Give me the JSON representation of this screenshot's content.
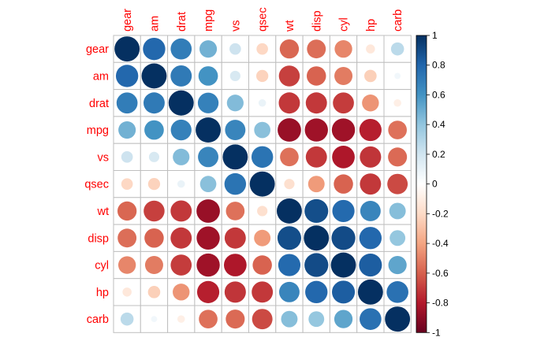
{
  "chart_data": {
    "type": "heatmap",
    "variables": [
      "gear",
      "am",
      "drat",
      "mpg",
      "vs",
      "qsec",
      "wt",
      "disp",
      "cyl",
      "hp",
      "carb"
    ],
    "matrix": [
      [
        1.0,
        0.79,
        0.7,
        0.48,
        0.21,
        -0.21,
        -0.58,
        -0.56,
        -0.49,
        -0.13,
        0.27
      ],
      [
        0.79,
        1.0,
        0.71,
        0.6,
        0.17,
        -0.23,
        -0.69,
        -0.59,
        -0.52,
        -0.24,
        0.06
      ],
      [
        0.7,
        0.71,
        1.0,
        0.68,
        0.44,
        0.09,
        -0.71,
        -0.71,
        -0.7,
        -0.45,
        -0.09
      ],
      [
        0.48,
        0.6,
        0.68,
        1.0,
        0.66,
        0.42,
        -0.87,
        -0.85,
        -0.85,
        -0.78,
        -0.55
      ],
      [
        0.21,
        0.17,
        0.44,
        0.66,
        1.0,
        0.74,
        -0.55,
        -0.71,
        -0.81,
        -0.72,
        -0.57
      ],
      [
        -0.21,
        -0.23,
        0.09,
        0.42,
        0.74,
        1.0,
        -0.17,
        -0.43,
        -0.59,
        -0.71,
        -0.66
      ],
      [
        -0.58,
        -0.69,
        -0.71,
        -0.87,
        -0.55,
        -0.17,
        1.0,
        0.89,
        0.78,
        0.66,
        0.43
      ],
      [
        -0.56,
        -0.59,
        -0.71,
        -0.85,
        -0.71,
        -0.43,
        0.89,
        1.0,
        0.9,
        0.79,
        0.39
      ],
      [
        -0.49,
        -0.52,
        -0.7,
        -0.85,
        -0.81,
        -0.59,
        0.78,
        0.9,
        1.0,
        0.83,
        0.53
      ],
      [
        -0.13,
        -0.24,
        -0.45,
        -0.78,
        -0.72,
        -0.71,
        0.66,
        0.79,
        0.83,
        1.0,
        0.75
      ],
      [
        0.27,
        0.06,
        -0.09,
        -0.55,
        -0.57,
        -0.66,
        0.43,
        0.39,
        0.53,
        0.75,
        1.0
      ]
    ],
    "color_scale": {
      "range": [
        -1,
        1
      ],
      "ticks": [
        "1",
        "0.8",
        "0.6",
        "0.4",
        "0.2",
        "0",
        "-0.2",
        "-0.4",
        "-0.6",
        "-0.8",
        "-1"
      ],
      "colors": [
        "#67001F",
        "#B2182B",
        "#D6604D",
        "#F4A582",
        "#FDDBC7",
        "#FFFFFF",
        "#D1E5F0",
        "#92C5DE",
        "#4393C3",
        "#2166AC",
        "#053061"
      ]
    },
    "label_color": "#ff0000",
    "grid": true,
    "legend_placement": "right"
  }
}
